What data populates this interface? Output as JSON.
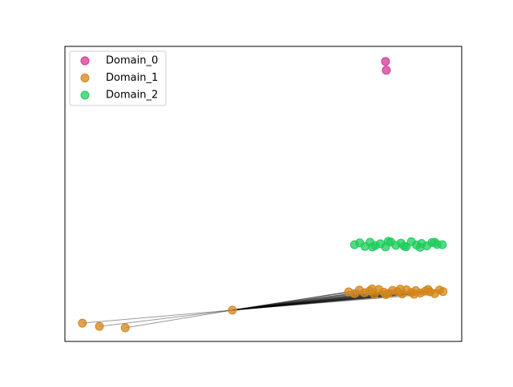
{
  "chart_data": {
    "type": "scatter",
    "xlim": [
      0,
      100
    ],
    "ylim": [
      0,
      100
    ],
    "legend": "upper left",
    "series": [
      {
        "name": "Domain_0",
        "color": "#d63694",
        "x": [
          80.8,
          81.0
        ],
        "y": [
          94.9,
          91.9
        ]
      },
      {
        "name": "Domain_1",
        "color": "#d4861a",
        "x": [
          4.4,
          8.7,
          15.2,
          42.2,
          71.5,
          73,
          74.2,
          75.5,
          76.8,
          78,
          79.1,
          80.3,
          81.5,
          82.6,
          83.8,
          85,
          86.1,
          87.3,
          88.4,
          89.6,
          90.8,
          92,
          93.2,
          94.4,
          95.3,
          77.4,
          80.9,
          84.5,
          88,
          91.5
        ],
        "y": [
          6.2,
          5.1,
          4.6,
          10.6,
          16.8,
          16.2,
          17.4,
          16.5,
          17.1,
          16.0,
          17.6,
          16.7,
          16.3,
          17.3,
          16.9,
          16.1,
          17.5,
          16.6,
          17.2,
          16.4,
          17.0,
          16.8,
          16.2,
          17.4,
          16.9,
          17.8,
          15.9,
          17.7,
          16.0,
          17.6
        ]
      },
      {
        "name": "Domain_2",
        "color": "#1fcc5c",
        "x": [
          73,
          74.3,
          75.6,
          76.9,
          78.2,
          79.5,
          80.8,
          82.1,
          83.4,
          84.7,
          86,
          87.3,
          88.6,
          89.9,
          91.2,
          92.5,
          93.8,
          95.1,
          77.5,
          81.5,
          85.5,
          89.5,
          93.2
        ],
        "y": [
          32.8,
          33.4,
          32.2,
          33.6,
          32.5,
          33.1,
          32.0,
          33.7,
          32.6,
          33.3,
          32.1,
          33.8,
          32.7,
          33.2,
          32.4,
          33.5,
          32.9,
          32.8,
          32.0,
          33.9,
          32.3,
          31.9,
          33.6
        ]
      }
    ]
  }
}
